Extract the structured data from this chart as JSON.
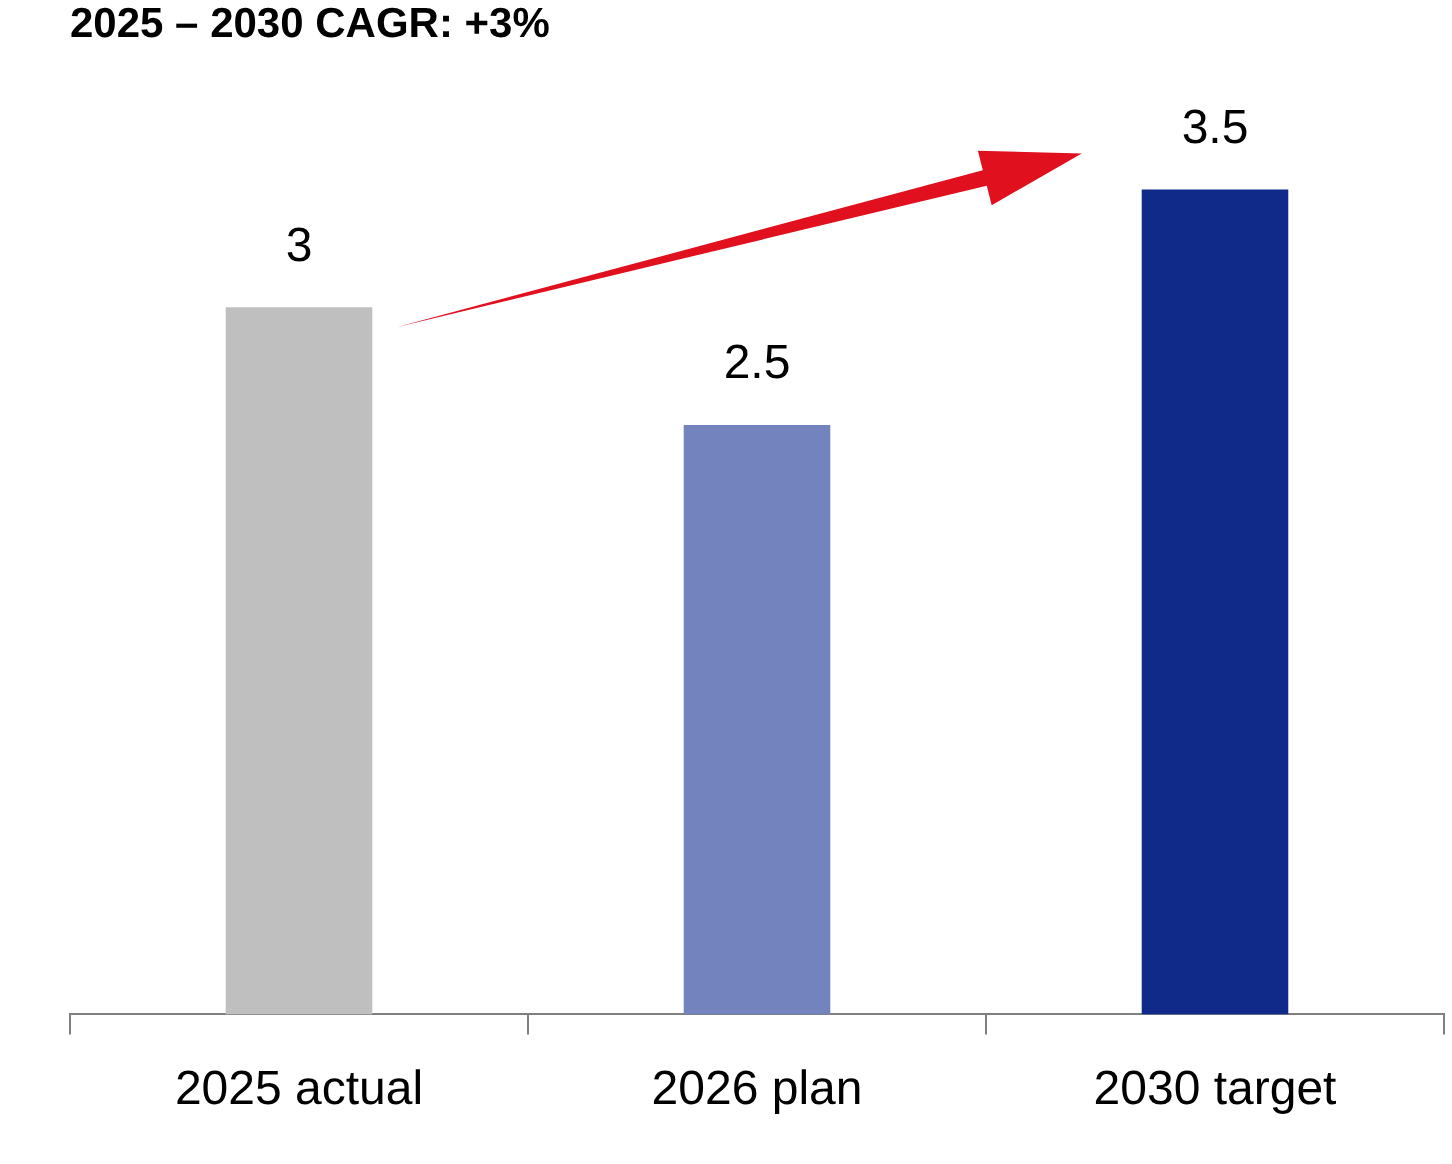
{
  "chart_data": {
    "type": "bar",
    "title": "2025 – 2030 CAGR: +3%",
    "categories": [
      "2025 actual",
      "2026 plan",
      "2030 target"
    ],
    "values": [
      3,
      2.5,
      3.5
    ],
    "colors": [
      "#bfbfbf",
      "#7283bd",
      "#102a8a"
    ],
    "data_labels": true,
    "grid": false,
    "legend": false
  }
}
